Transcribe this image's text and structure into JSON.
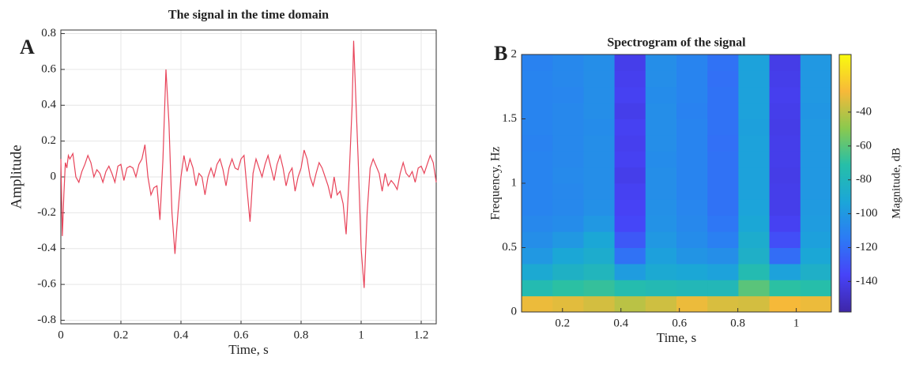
{
  "chart_data": [
    {
      "type": "line",
      "panel_label": "A",
      "title": "The signal in the time domain",
      "xlabel": "Time, s",
      "ylabel": "Amplitude",
      "xlim": [
        0,
        1.25
      ],
      "ylim": [
        -0.82,
        0.82
      ],
      "xticks": [
        0,
        0.2,
        0.4,
        0.6,
        0.8,
        1,
        1.2
      ],
      "yticks": [
        -0.8,
        -0.6,
        -0.4,
        -0.2,
        0,
        0.2,
        0.4,
        0.6,
        0.8
      ],
      "grid": true,
      "series": [
        {
          "color": "#e8445a",
          "x": [
            0,
            0.005,
            0.01,
            0.015,
            0.02,
            0.025,
            0.03,
            0.04,
            0.05,
            0.06,
            0.07,
            0.08,
            0.09,
            0.1,
            0.11,
            0.12,
            0.13,
            0.14,
            0.15,
            0.16,
            0.17,
            0.18,
            0.19,
            0.2,
            0.21,
            0.22,
            0.23,
            0.24,
            0.25,
            0.26,
            0.27,
            0.28,
            0.29,
            0.3,
            0.31,
            0.32,
            0.33,
            0.34,
            0.35,
            0.36,
            0.37,
            0.38,
            0.39,
            0.4,
            0.41,
            0.42,
            0.43,
            0.44,
            0.45,
            0.46,
            0.47,
            0.48,
            0.49,
            0.5,
            0.51,
            0.52,
            0.53,
            0.54,
            0.55,
            0.56,
            0.57,
            0.58,
            0.59,
            0.6,
            0.61,
            0.62,
            0.63,
            0.64,
            0.65,
            0.66,
            0.67,
            0.68,
            0.69,
            0.7,
            0.71,
            0.72,
            0.73,
            0.74,
            0.75,
            0.76,
            0.77,
            0.78,
            0.79,
            0.8,
            0.81,
            0.82,
            0.83,
            0.84,
            0.85,
            0.86,
            0.87,
            0.88,
            0.89,
            0.9,
            0.91,
            0.92,
            0.93,
            0.94,
            0.95,
            0.96,
            0.97,
            0.975,
            0.99,
            1.0,
            1.01,
            1.02,
            1.03,
            1.04,
            1.05,
            1.06,
            1.07,
            1.08,
            1.09,
            1.1,
            1.11,
            1.12,
            1.13,
            1.14,
            1.15,
            1.16,
            1.17,
            1.18,
            1.19,
            1.2,
            1.21,
            1.22,
            1.23,
            1.24,
            1.25
          ],
          "values": [
            0.1,
            -0.33,
            -0.1,
            0.08,
            0.05,
            0.12,
            0.1,
            0.13,
            0.0,
            -0.03,
            0.03,
            0.07,
            0.12,
            0.08,
            0.0,
            0.04,
            0.02,
            -0.03,
            0.03,
            0.06,
            0.02,
            -0.03,
            0.06,
            0.07,
            -0.02,
            0.05,
            0.06,
            0.05,
            0.0,
            0.07,
            0.1,
            0.18,
            0.0,
            -0.1,
            -0.06,
            -0.05,
            -0.24,
            0.1,
            0.6,
            0.3,
            -0.2,
            -0.43,
            -0.2,
            0.0,
            0.12,
            0.03,
            0.1,
            0.05,
            -0.05,
            0.02,
            0.0,
            -0.1,
            0.0,
            0.05,
            0.0,
            0.07,
            0.1,
            0.04,
            -0.05,
            0.05,
            0.1,
            0.05,
            0.04,
            0.1,
            0.12,
            -0.07,
            -0.25,
            0.02,
            0.1,
            0.05,
            0.0,
            0.07,
            0.12,
            0.05,
            -0.02,
            0.07,
            0.12,
            0.05,
            -0.05,
            0.02,
            0.05,
            -0.08,
            0.0,
            0.05,
            0.15,
            0.1,
            0.0,
            -0.05,
            0.02,
            0.08,
            0.05,
            0.0,
            -0.05,
            -0.12,
            0.0,
            -0.1,
            -0.08,
            -0.15,
            -0.32,
            0.0,
            0.4,
            0.76,
            0.1,
            -0.4,
            -0.62,
            -0.2,
            0.05,
            0.1,
            0.06,
            0.02,
            -0.08,
            0.02,
            -0.05,
            -0.02,
            -0.04,
            -0.07,
            0.02,
            0.08,
            0.02,
            0.0,
            0.03,
            -0.03,
            0.05,
            0.06,
            0.02,
            0.07,
            0.12,
            0.08,
            -0.03
          ]
        }
      ]
    },
    {
      "type": "heatmap",
      "panel_label": "B",
      "title": "Spectrogram of the signal",
      "xlabel": "Time, s",
      "ylabel": "Frequency, Hz",
      "xlim": [
        0.06,
        1.12
      ],
      "ylim": [
        0,
        2
      ],
      "xticks": [
        0.2,
        0.4,
        0.6,
        0.8,
        1
      ],
      "yticks": [
        0,
        0.5,
        1,
        1.5,
        2
      ],
      "x": [
        0.113,
        0.219,
        0.325,
        0.431,
        0.537,
        0.643,
        0.749,
        0.855,
        0.961,
        1.067
      ],
      "y": [
        0.0625,
        0.1875,
        0.3125,
        0.4375,
        0.5625,
        0.6875,
        0.8125,
        0.9375,
        1.0625,
        1.1875,
        1.3125,
        1.4375,
        1.5625,
        1.6875,
        1.8125,
        1.9375
      ],
      "z": [
        [
          -30,
          -32,
          -35,
          -40,
          -36,
          -30,
          -34,
          -35,
          -28,
          -30
        ],
        [
          -75,
          -70,
          -68,
          -74,
          -76,
          -78,
          -78,
          -60,
          -70,
          -72
        ],
        [
          -90,
          -84,
          -80,
          -98,
          -90,
          -92,
          -95,
          -75,
          -95,
          -85
        ],
        [
          -100,
          -92,
          -88,
          -118,
          -96,
          -102,
          -105,
          -85,
          -120,
          -92
        ],
        [
          -105,
          -100,
          -92,
          -128,
          -100,
          -106,
          -112,
          -88,
          -132,
          -96
        ],
        [
          -108,
          -106,
          -100,
          -135,
          -103,
          -108,
          -116,
          -92,
          -138,
          -98
        ],
        [
          -110,
          -108,
          -104,
          -137,
          -104,
          -109,
          -118,
          -94,
          -140,
          -99
        ],
        [
          -110,
          -108,
          -105,
          -138,
          -105,
          -110,
          -118,
          -95,
          -140,
          -100
        ],
        [
          -110,
          -107,
          -105,
          -140,
          -105,
          -110,
          -118,
          -95,
          -141,
          -100
        ],
        [
          -110,
          -108,
          -105,
          -138,
          -106,
          -110,
          -118,
          -95,
          -140,
          -100
        ],
        [
          -111,
          -108,
          -105,
          -139,
          -105,
          -110,
          -119,
          -95,
          -140,
          -100
        ],
        [
          -110,
          -108,
          -106,
          -138,
          -105,
          -110,
          -118,
          -96,
          -141,
          -100
        ],
        [
          -110,
          -108,
          -105,
          -140,
          -105,
          -111,
          -118,
          -95,
          -140,
          -101
        ],
        [
          -110,
          -109,
          -105,
          -138,
          -106,
          -110,
          -118,
          -95,
          -139,
          -100
        ],
        [
          -110,
          -108,
          -105,
          -139,
          -105,
          -110,
          -119,
          -95,
          -140,
          -100
        ],
        [
          -111,
          -108,
          -105,
          -140,
          -105,
          -110,
          -118,
          -95,
          -141,
          -100
        ]
      ],
      "colormap": [
        "#3e26a8",
        "#4743f8",
        "#2c7bf5",
        "#1ba6d8",
        "#26bfa8",
        "#8bc94e",
        "#f7b939",
        "#f9fb0e"
      ],
      "colorbar": {
        "label": "Magnitude, dB",
        "lim": [
          -158,
          -6
        ],
        "ticks": [
          -140,
          -120,
          -100,
          -80,
          -60,
          -40
        ]
      }
    }
  ]
}
